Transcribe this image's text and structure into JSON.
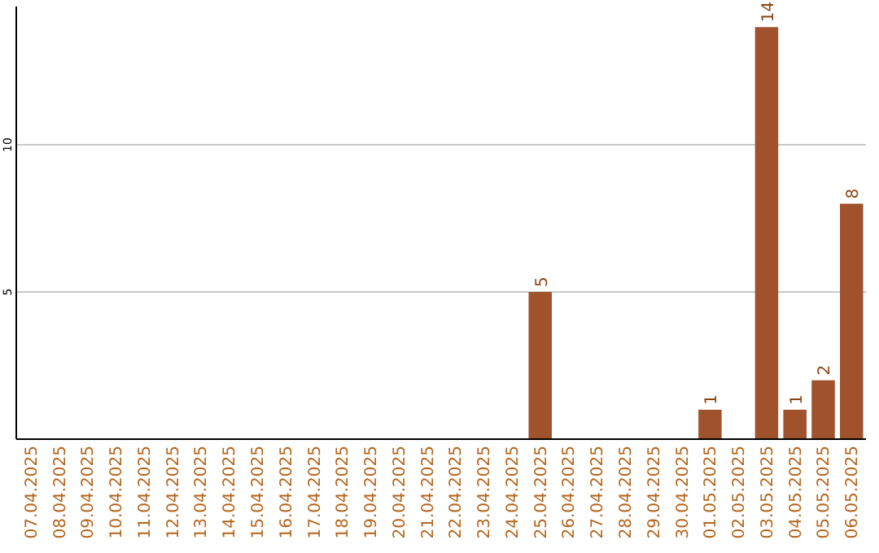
{
  "chart_data": {
    "type": "bar",
    "categories": [
      "07.04.2025",
      "08.04.2025",
      "09.04.2025",
      "10.04.2025",
      "11.04.2025",
      "12.04.2025",
      "13.04.2025",
      "14.04.2025",
      "15.04.2025",
      "16.04.2025",
      "17.04.2025",
      "18.04.2025",
      "19.04.2025",
      "20.04.2025",
      "21.04.2025",
      "22.04.2025",
      "23.04.2025",
      "24.04.2025",
      "25.04.2025",
      "26.04.2025",
      "27.04.2025",
      "28.04.2025",
      "29.04.2025",
      "30.04.2025",
      "01.05.2025",
      "02.05.2025",
      "03.05.2025",
      "04.05.2025",
      "05.05.2025",
      "06.05.2025"
    ],
    "values": [
      0,
      0,
      0,
      0,
      0,
      0,
      0,
      0,
      0,
      0,
      0,
      0,
      0,
      0,
      0,
      0,
      0,
      0,
      5,
      0,
      0,
      0,
      0,
      0,
      1,
      0,
      14,
      1,
      2,
      8
    ],
    "value_labels": [
      null,
      null,
      null,
      null,
      null,
      null,
      null,
      null,
      null,
      null,
      null,
      null,
      null,
      null,
      null,
      null,
      null,
      null,
      "5",
      null,
      null,
      null,
      null,
      null,
      "1",
      null,
      "14",
      "1",
      "2",
      "8"
    ],
    "color": "#a0522d",
    "ylim": [
      0,
      14.7
    ],
    "yticks": [
      5,
      10
    ],
    "grid": "y"
  }
}
